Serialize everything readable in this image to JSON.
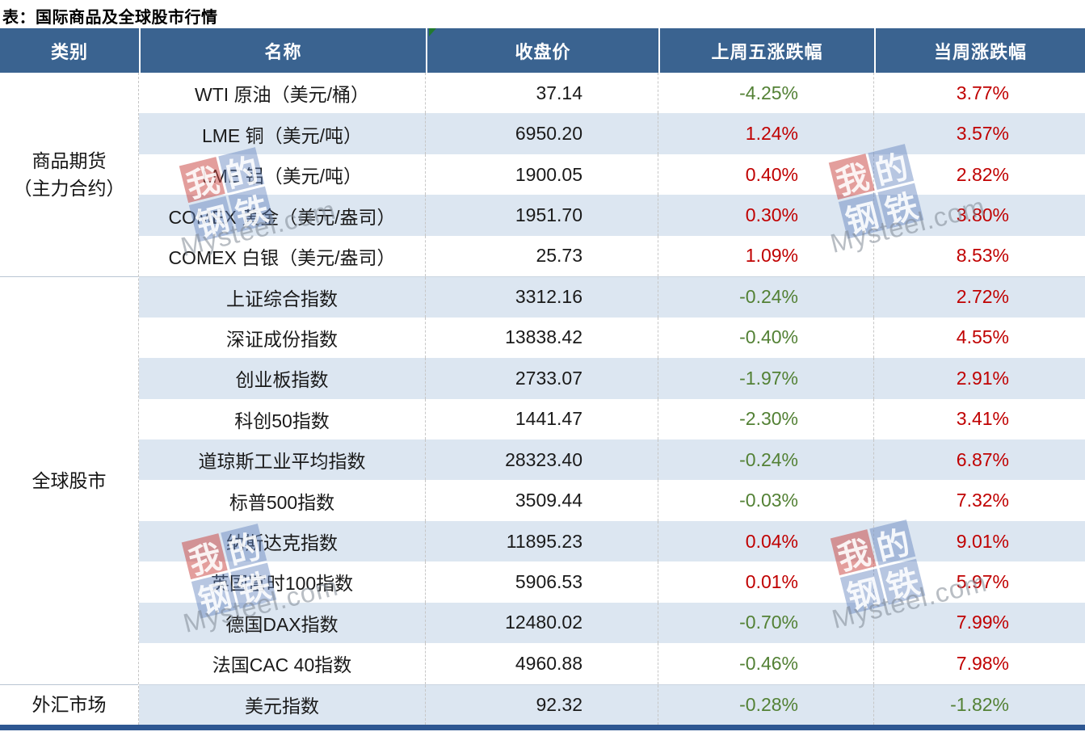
{
  "title": "表：国际商品及全球股市行情",
  "table": {
    "headers": [
      "类别",
      "名称",
      "收盘价",
      "上周五涨跌幅",
      "当周涨跌幅"
    ],
    "categories": [
      {
        "line1": "商品期货",
        "line2": "（主力合约）",
        "rows": 5
      },
      {
        "line1": "全球股市",
        "line2": "",
        "rows": 10
      },
      {
        "line1": "外汇市场",
        "line2": "",
        "rows": 1
      }
    ]
  },
  "chart_data": {
    "type": "table",
    "title": "表：国际商品及全球股市行情",
    "columns": [
      "类别",
      "名称",
      "收盘价",
      "上周五涨跌幅",
      "当周涨跌幅"
    ],
    "rows": [
      [
        "商品期货（主力合约）",
        "WTI 原油（美元/桶）",
        "37.14",
        "-4.25%",
        "3.77%"
      ],
      [
        "商品期货（主力合约）",
        "LME 铜（美元/吨）",
        "6950.20",
        "1.24%",
        "3.57%"
      ],
      [
        "商品期货（主力合约）",
        "LME 铝（美元/吨）",
        "1900.05",
        "0.40%",
        "2.82%"
      ],
      [
        "商品期货（主力合约）",
        "COMEX 黄金（美元/盎司）",
        "1951.70",
        "0.30%",
        "3.80%"
      ],
      [
        "商品期货（主力合约）",
        "COMEX 白银（美元/盎司）",
        "25.73",
        "1.09%",
        "8.53%"
      ],
      [
        "全球股市",
        "上证综合指数",
        "3312.16",
        "-0.24%",
        "2.72%"
      ],
      [
        "全球股市",
        "深证成份指数",
        "13838.42",
        "-0.40%",
        "4.55%"
      ],
      [
        "全球股市",
        "创业板指数",
        "2733.07",
        "-1.97%",
        "2.91%"
      ],
      [
        "全球股市",
        "科创50指数",
        "1441.47",
        "-2.30%",
        "3.41%"
      ],
      [
        "全球股市",
        "道琼斯工业平均指数",
        "28323.40",
        "-0.24%",
        "6.87%"
      ],
      [
        "全球股市",
        "标普500指数",
        "3509.44",
        "-0.03%",
        "7.32%"
      ],
      [
        "全球股市",
        "纳斯达克指数",
        "11895.23",
        "0.04%",
        "9.01%"
      ],
      [
        "全球股市",
        "英国富时100指数",
        "5906.53",
        "0.01%",
        "5.97%"
      ],
      [
        "全球股市",
        "德国DAX指数",
        "12480.02",
        "-0.70%",
        "7.99%"
      ],
      [
        "全球股市",
        "法国CAC 40指数",
        "4960.88",
        "-0.46%",
        "7.98%"
      ],
      [
        "外汇市场",
        "美元指数",
        "92.32",
        "-0.28%",
        "-1.82%"
      ]
    ]
  },
  "watermark": {
    "chars": [
      "我",
      "的",
      "钢",
      "铁"
    ],
    "text": "Mysteel.com"
  },
  "colors": {
    "header_bg": "#3a6390",
    "row_stripe": "#dce6f1",
    "rise_red": "#c00000",
    "fall_green": "#538135",
    "bottom_bar": "#2e5792",
    "watermark_red": "#c73e3a",
    "watermark_blue": "#6080bc",
    "note_marker_green": "#217a2e"
  }
}
